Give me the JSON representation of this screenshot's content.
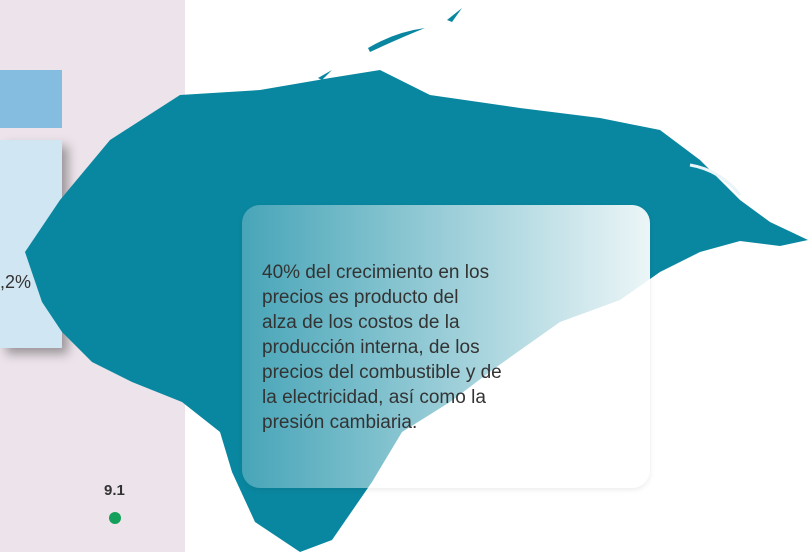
{
  "left": {
    "percent": ",2%",
    "value": "9.1"
  },
  "note": {
    "lines": [
      "40% del crecimiento en los",
      "precios es producto del",
      "alza de los costos de la",
      "producción interna, de los",
      "precios del combustible y de",
      "la electricidad, así como la",
      "presión cambiaria."
    ]
  }
}
